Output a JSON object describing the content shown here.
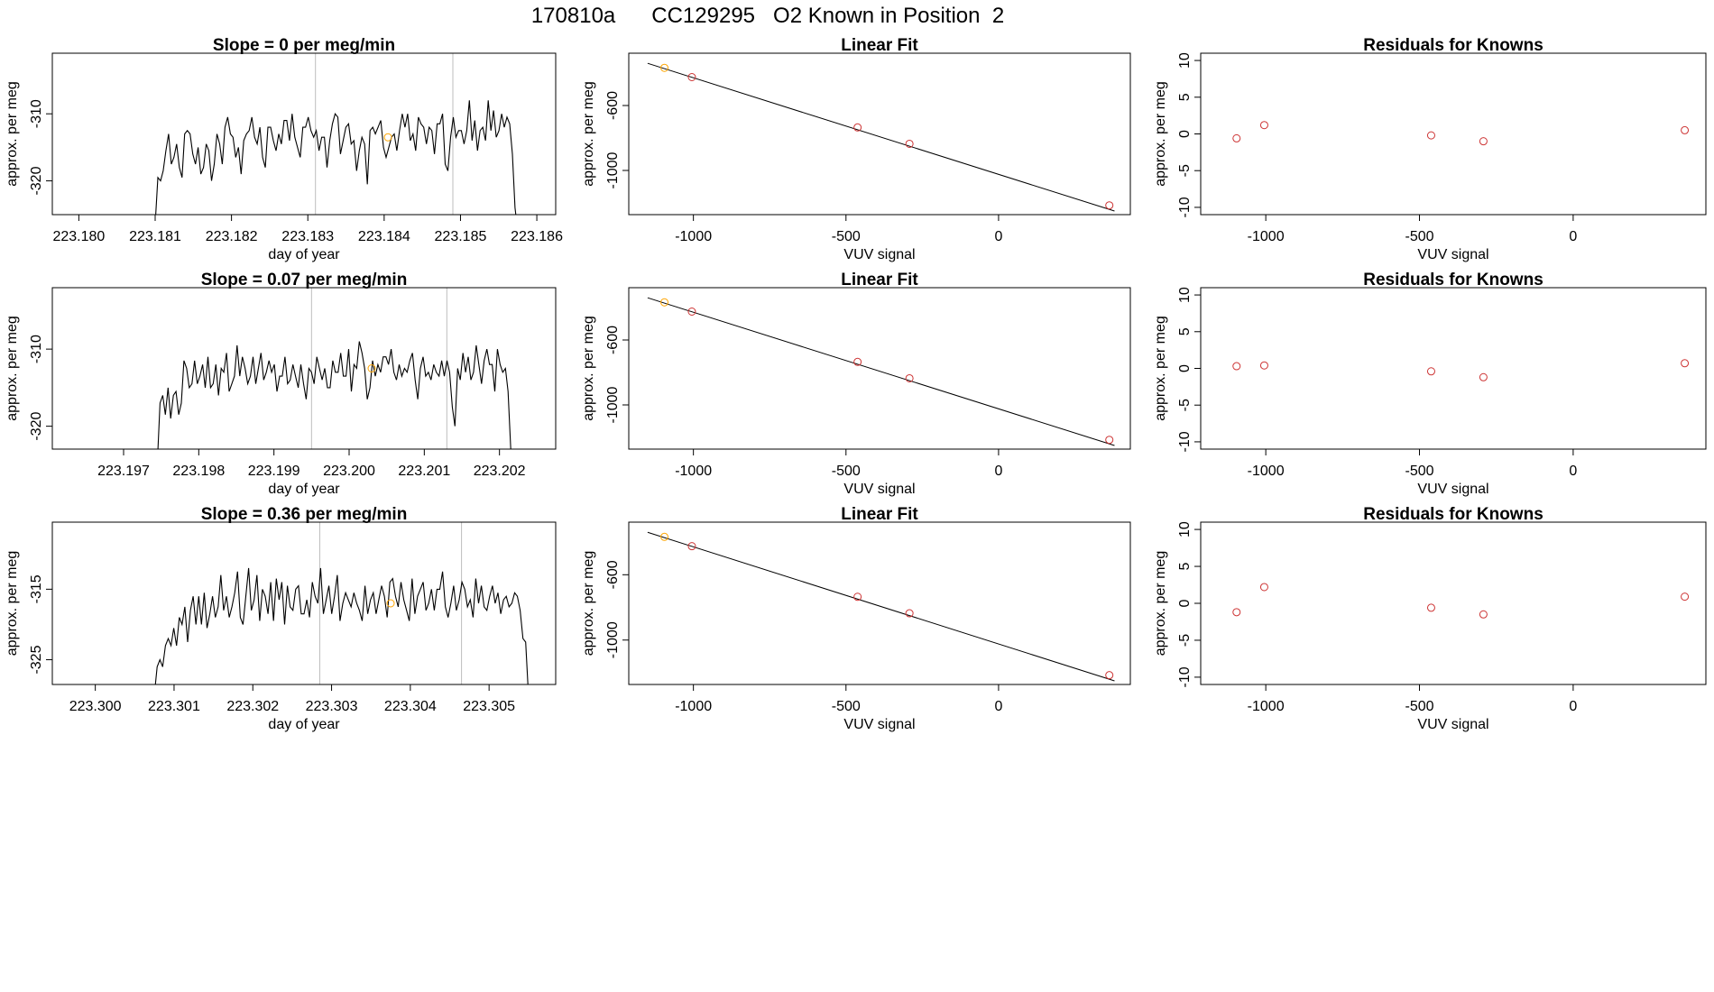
{
  "figure_title": "170810a      CC129295   O2 Known in Position  2",
  "colors": {
    "line": "#000000",
    "pt_red": "#cd3333",
    "pt_orange": "#ffa500",
    "vline": "#bebebe",
    "axis": "#000000"
  },
  "chart_data": [
    {
      "type": "line",
      "title": "Slope =  0  per meg/min",
      "xlabel": "day of year",
      "ylabel": "approx. per meg",
      "xticks": [
        "223.180",
        "223.181",
        "223.182",
        "223.183",
        "223.184",
        "223.185",
        "223.186"
      ],
      "yticks": [
        "-310",
        "-320"
      ],
      "xlim": [
        223.1797,
        223.1862
      ],
      "ylim": [
        -324.5,
        -301.5
      ],
      "vlines": [
        223.1831,
        223.1849
      ],
      "line": {
        "x_start": 223.181,
        "x_end": 223.18575,
        "y": [
          -326.5,
          -319.5,
          -320,
          -318.5,
          -315.5,
          -313,
          -317.5,
          -316.5,
          -314.5,
          -318,
          -319.5,
          -313,
          -312.5,
          -313,
          -316,
          -317.5,
          -315,
          -319,
          -318,
          -314.5,
          -315.5,
          -320,
          -317.5,
          -313,
          -314.5,
          -317.5,
          -312,
          -310.5,
          -313,
          -313.5,
          -316.5,
          -315,
          -319,
          -314,
          -313,
          -312.5,
          -310.5,
          -313.5,
          -314.5,
          -312,
          -316.5,
          -318,
          -312,
          -312,
          -314,
          -315.5,
          -313,
          -314.5,
          -311,
          -311,
          -314,
          -310,
          -313.5,
          -315,
          -316.5,
          -312,
          -312,
          -310.5,
          -312.5,
          -313.5,
          -312.5,
          -315.5,
          -313.5,
          -313.5,
          -318,
          -314,
          -311.5,
          -310,
          -310.5,
          -316,
          -314,
          -312,
          -311.5,
          -314.5,
          -314,
          -318.5,
          -315.5,
          -313.5,
          -314.5,
          -320.5,
          -312.5,
          -312,
          -313,
          -312,
          -311,
          -315,
          -316.5,
          -315,
          -313.5,
          -313,
          -315.5,
          -312.5,
          -310,
          -312,
          -310,
          -314,
          -313,
          -315.5,
          -310.5,
          -311.5,
          -312,
          -314.5,
          -312,
          -312.5,
          -316,
          -311.5,
          -311.5,
          -310,
          -317.5,
          -318.5,
          -313.5,
          -310.5,
          -313.5,
          -312.5,
          -312.5,
          -314.5,
          -312.5,
          -308,
          -314,
          -311,
          -315.5,
          -312.5,
          -312,
          -314,
          -308,
          -312.5,
          -309.5,
          -313.5,
          -312.5,
          -310,
          -312,
          -310.5,
          -311.5,
          -316,
          -324,
          -327.5
        ]
      },
      "points": [
        {
          "x": 223.18405,
          "y": -313.5,
          "color": "orange"
        }
      ]
    },
    {
      "type": "scatter",
      "title": "Linear Fit",
      "xlabel": "VUV signal",
      "ylabel": "approx. per meg",
      "xticks": [
        "-1000",
        "-500",
        "0"
      ],
      "yticks": [
        "-600",
        "-1000"
      ],
      "xlim": [
        -1200,
        420
      ],
      "ylim": [
        -1250,
        -300
      ],
      "fit_line": {
        "x": [
          -1150,
          380
        ],
        "y": [
          -340,
          -1250
        ]
      },
      "points": [
        {
          "x": -1095,
          "y": -368,
          "color": "orange"
        },
        {
          "x": -1005,
          "y": -425
        },
        {
          "x": -462,
          "y": -735
        },
        {
          "x": -292,
          "y": -836
        },
        {
          "x": 363,
          "y": -1215
        }
      ]
    },
    {
      "type": "scatter",
      "title": "Residuals for Knowns",
      "xlabel": "VUV signal",
      "ylabel": "approx. per meg",
      "xticks": [
        "-1000",
        "-500",
        "0"
      ],
      "yticks": [
        "10",
        "5",
        "0",
        "-5",
        "-10"
      ],
      "xlim": [
        -1200,
        420
      ],
      "ylim": [
        -10.5,
        10.5
      ],
      "points": [
        {
          "x": -1095,
          "y": -0.6
        },
        {
          "x": -1005,
          "y": 1.2
        },
        {
          "x": -462,
          "y": -0.2
        },
        {
          "x": -292,
          "y": -1.0
        },
        {
          "x": 363,
          "y": 0.5
        }
      ]
    },
    {
      "type": "line",
      "title": "Slope =  0.07  per meg/min",
      "xlabel": "day of year",
      "ylabel": "approx. per meg",
      "xticks": [
        "223.197",
        "223.198",
        "223.199",
        "223.200",
        "223.201",
        "223.202"
      ],
      "yticks": [
        "-310",
        "-320"
      ],
      "xlim": [
        223.1961,
        223.2027
      ],
      "ylim": [
        -322.5,
        -302.5
      ],
      "vlines": [
        223.1995,
        223.2013
      ],
      "line": {
        "x_start": 223.19745,
        "x_end": 223.20215,
        "y": [
          -324.5,
          -317,
          -316,
          -318.5,
          -315,
          -319,
          -316,
          -315.5,
          -318.5,
          -317,
          -311.5,
          -312.5,
          -315,
          -314.5,
          -311.5,
          -314.5,
          -313.5,
          -312,
          -315,
          -311,
          -315,
          -314.5,
          -312,
          -316,
          -312.5,
          -313,
          -310.5,
          -315.5,
          -314.5,
          -313.5,
          -309.5,
          -313.5,
          -311,
          -312.5,
          -314.5,
          -313.5,
          -311,
          -314.5,
          -312.5,
          -310.5,
          -314,
          -313,
          -311.5,
          -313,
          -312,
          -315.5,
          -313.5,
          -313.5,
          -311,
          -314.5,
          -314,
          -312,
          -313.5,
          -315,
          -312,
          -314.5,
          -316.5,
          -312.5,
          -313,
          -314.5,
          -311,
          -312.5,
          -314,
          -312.5,
          -315,
          -315,
          -311.5,
          -313,
          -313,
          -310.5,
          -313.5,
          -313.5,
          -310,
          -315.5,
          -312,
          -312.5,
          -309,
          -310.5,
          -312.5,
          -316.5,
          -315,
          -311.5,
          -313.5,
          -312,
          -313,
          -311,
          -311,
          -312,
          -310,
          -313,
          -314,
          -312,
          -313.5,
          -312.5,
          -313,
          -311.5,
          -310.5,
          -314,
          -316.5,
          -312.5,
          -311,
          -313.5,
          -313,
          -314,
          -312,
          -313,
          -313.5,
          -311.5,
          -313.5,
          -311.5,
          -313,
          -317.5,
          -320,
          -312.5,
          -314,
          -310.5,
          -313,
          -311,
          -314,
          -313,
          -309.5,
          -312,
          -314.5,
          -311.5,
          -310,
          -312,
          -312,
          -315.5,
          -310,
          -312,
          -313,
          -312.5,
          -315.5,
          -323
        ]
      },
      "points": [
        {
          "x": 223.2003,
          "y": -312.5,
          "color": "orange"
        }
      ]
    },
    {
      "type": "scatter",
      "title": "Linear Fit",
      "xlabel": "VUV signal",
      "ylabel": "approx. per meg",
      "xticks": [
        "-1000",
        "-500",
        "0"
      ],
      "yticks": [
        "-600",
        "-1000"
      ],
      "xlim": [
        -1200,
        420
      ],
      "ylim": [
        -1250,
        -300
      ],
      "fit_line": {
        "x": [
          -1150,
          380
        ],
        "y": [
          -340,
          -1250
        ]
      },
      "points": [
        {
          "x": -1095,
          "y": -368,
          "color": "orange"
        },
        {
          "x": -1005,
          "y": -425
        },
        {
          "x": -462,
          "y": -735
        },
        {
          "x": -292,
          "y": -836
        },
        {
          "x": 363,
          "y": -1215
        }
      ]
    },
    {
      "type": "scatter",
      "title": "Residuals for Knowns",
      "xlabel": "VUV signal",
      "ylabel": "approx. per meg",
      "xticks": [
        "-1000",
        "-500",
        "0"
      ],
      "yticks": [
        "10",
        "5",
        "0",
        "-5",
        "-10"
      ],
      "xlim": [
        -1200,
        420
      ],
      "ylim": [
        -10.5,
        10.5
      ],
      "points": [
        {
          "x": -1095,
          "y": 0.3
        },
        {
          "x": -1005,
          "y": 0.4
        },
        {
          "x": -462,
          "y": -0.4
        },
        {
          "x": -292,
          "y": -1.2
        },
        {
          "x": 363,
          "y": 0.7
        }
      ]
    },
    {
      "type": "line",
      "title": "Slope =  0.36  per meg/min",
      "xlabel": "day of year",
      "ylabel": "approx. per meg",
      "xticks": [
        "223.300",
        "223.301",
        "223.302",
        "223.303",
        "223.304",
        "223.305"
      ],
      "yticks": [
        "-315",
        "-325"
      ],
      "xlim": [
        223.2995,
        223.3058
      ],
      "ylim": [
        -328,
        -306
      ],
      "vlines": [
        223.30285,
        223.30465
      ],
      "line": {
        "x_start": 223.30075,
        "x_end": 223.3055,
        "y": [
          -330,
          -326,
          -325,
          -326,
          -323,
          -322,
          -323,
          -320.5,
          -323,
          -319,
          -320,
          -317.5,
          -322.5,
          -318,
          -316,
          -320,
          -316,
          -320,
          -315.5,
          -320.5,
          -318.5,
          -316,
          -319,
          -317.5,
          -313,
          -318,
          -316,
          -319,
          -317.5,
          -315.5,
          -312.5,
          -319,
          -320,
          -316,
          -312,
          -318,
          -316.5,
          -313,
          -319.5,
          -315,
          -316,
          -318.5,
          -314,
          -319.5,
          -313.5,
          -316.5,
          -314,
          -320,
          -314.5,
          -317.5,
          -318,
          -315,
          -314.5,
          -318.5,
          -318.5,
          -316.5,
          -319,
          -314,
          -316,
          -317,
          -312,
          -318.5,
          -316.5,
          -314.5,
          -318.5,
          -316,
          -313,
          -319.5,
          -317,
          -315.5,
          -316.5,
          -317.5,
          -315.5,
          -317,
          -318,
          -319.5,
          -314.5,
          -318.5,
          -316.5,
          -315.5,
          -318.5,
          -316.5,
          -314.5,
          -316,
          -319,
          -314,
          -313.5,
          -316,
          -317.5,
          -314,
          -316.5,
          -318,
          -319.5,
          -313.5,
          -318.5,
          -316,
          -315,
          -314,
          -318,
          -317,
          -315,
          -318,
          -315,
          -315,
          -312.5,
          -317.5,
          -319,
          -317,
          -314.5,
          -318,
          -316.5,
          -314,
          -315,
          -317.5,
          -316.5,
          -319,
          -313.5,
          -317,
          -314.5,
          -317.5,
          -318,
          -316,
          -314.5,
          -317,
          -315.5,
          -318.5,
          -316.5,
          -316,
          -317.5,
          -317,
          -315.5,
          -316,
          -318,
          -322,
          -322.5,
          -330
        ]
      },
      "points": [
        {
          "x": 223.30375,
          "y": -317,
          "color": "orange"
        }
      ]
    },
    {
      "type": "scatter",
      "title": "Linear Fit",
      "xlabel": "VUV signal",
      "ylabel": "approx. per meg",
      "xticks": [
        "-1000",
        "-500",
        "0"
      ],
      "yticks": [
        "-600",
        "-1000"
      ],
      "xlim": [
        -1200,
        420
      ],
      "ylim": [
        -1250,
        -300
      ],
      "fit_line": {
        "x": [
          -1150,
          380
        ],
        "y": [
          -340,
          -1250
        ]
      },
      "points": [
        {
          "x": -1095,
          "y": -368,
          "color": "orange"
        },
        {
          "x": -1005,
          "y": -425
        },
        {
          "x": -462,
          "y": -735
        },
        {
          "x": -292,
          "y": -836
        },
        {
          "x": 363,
          "y": -1215
        }
      ]
    },
    {
      "type": "scatter",
      "title": "Residuals for Knowns",
      "xlabel": "VUV signal",
      "ylabel": "approx. per meg",
      "xticks": [
        "-1000",
        "-500",
        "0"
      ],
      "yticks": [
        "10",
        "5",
        "0",
        "-5",
        "-10"
      ],
      "xlim": [
        -1200,
        420
      ],
      "ylim": [
        -10.5,
        10.5
      ],
      "points": [
        {
          "x": -1095,
          "y": -1.2
        },
        {
          "x": -1005,
          "y": 2.2
        },
        {
          "x": -462,
          "y": -0.6
        },
        {
          "x": -292,
          "y": -1.5
        },
        {
          "x": 363,
          "y": 0.9
        }
      ]
    }
  ]
}
